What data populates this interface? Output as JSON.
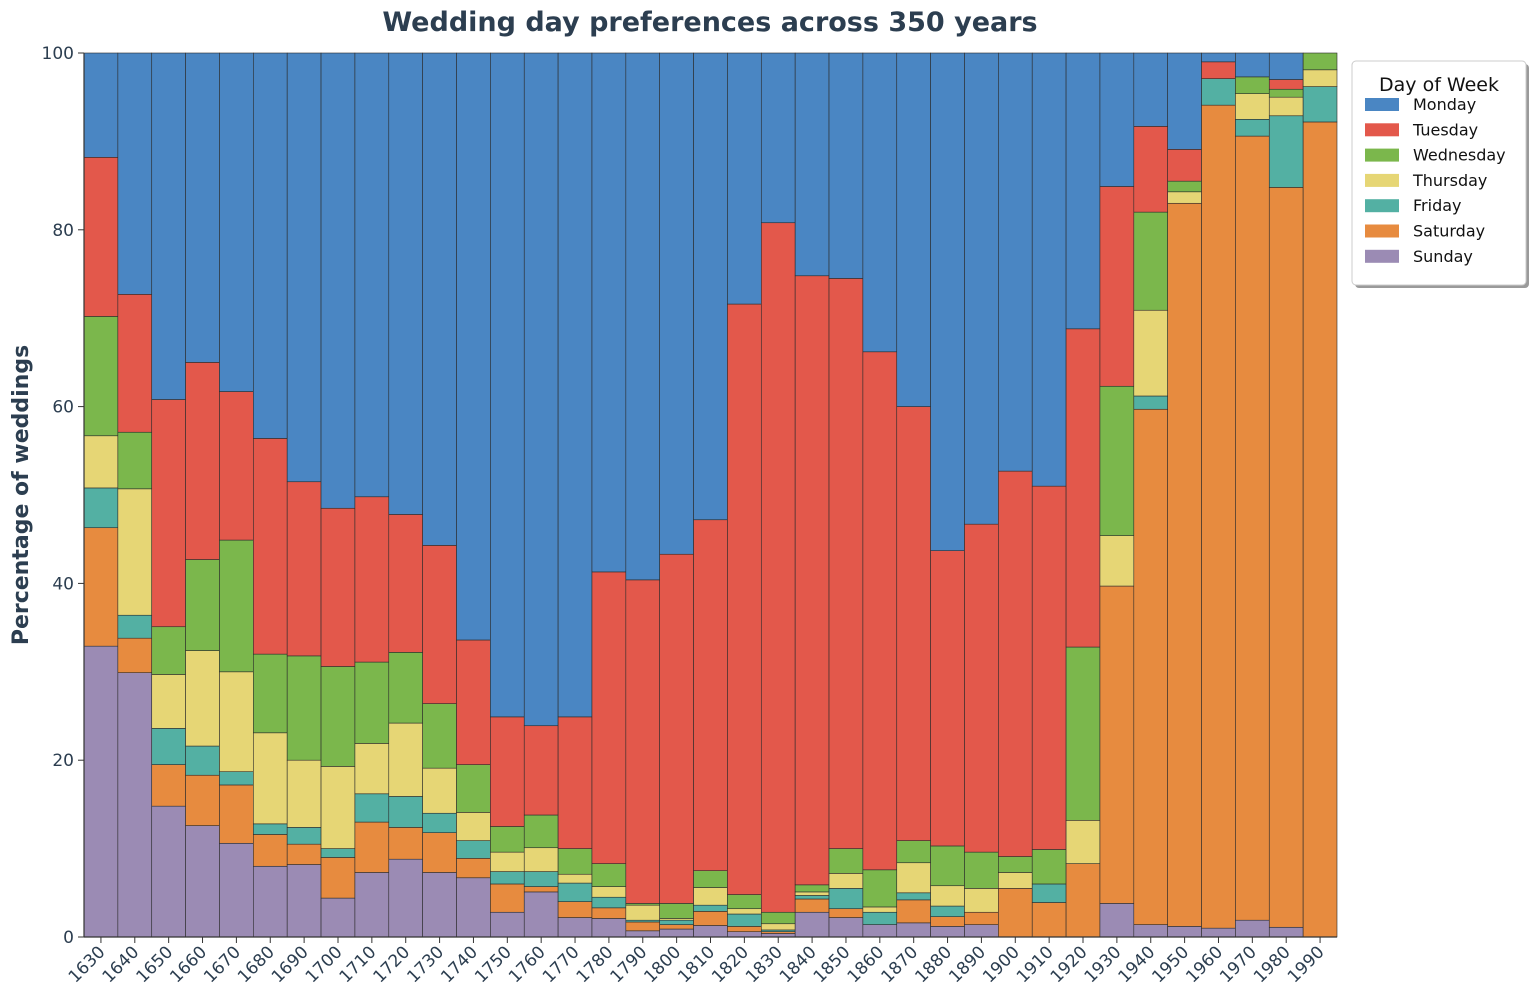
{
  "chart_data": {
    "type": "bar",
    "stacked": true,
    "normalized_percent": true,
    "title": "Wedding day preferences across 350 years",
    "xlabel": "",
    "ylabel": "Percentage of weddings",
    "ylim": [
      0,
      100
    ],
    "yticks": [
      0,
      20,
      40,
      60,
      80,
      100
    ],
    "grid": false,
    "legend": {
      "title": "Day of Week",
      "placement": "outside-top-right"
    },
    "categories": [
      "1630",
      "1640",
      "1650",
      "1660",
      "1670",
      "1680",
      "1690",
      "1700",
      "1710",
      "1720",
      "1730",
      "1740",
      "1750",
      "1760",
      "1770",
      "1780",
      "1790",
      "1800",
      "1810",
      "1820",
      "1830",
      "1840",
      "1850",
      "1860",
      "1870",
      "1880",
      "1890",
      "1900",
      "1910",
      "1920",
      "1930",
      "1940",
      "1950",
      "1960",
      "1970",
      "1980",
      "1990"
    ],
    "series": [
      {
        "name": "Sunday",
        "color": "#9b8bb4",
        "values": [
          32.9,
          29.9,
          14.8,
          12.6,
          10.6,
          8.0,
          8.2,
          4.4,
          7.3,
          8.8,
          7.3,
          6.7,
          2.8,
          5.1,
          2.2,
          2.1,
          0.7,
          0.9,
          1.3,
          0.6,
          0.4,
          2.8,
          2.2,
          1.4,
          1.6,
          1.2,
          1.4,
          0,
          0,
          0,
          3.8,
          1.4,
          1.2,
          1.0,
          1.9,
          1.1,
          0
        ]
      },
      {
        "name": "Saturday",
        "color": "#e78b3f",
        "values": [
          13.4,
          3.9,
          4.7,
          5.7,
          6.6,
          3.6,
          2.3,
          4.6,
          5.7,
          3.6,
          4.5,
          2.2,
          3.2,
          0.6,
          1.8,
          1.2,
          1.0,
          0.5,
          1.6,
          0.6,
          0.2,
          1.5,
          1.0,
          0,
          2.6,
          1.1,
          1.4,
          5.5,
          3.9,
          8.3,
          35.9,
          58.3,
          81.8,
          93.1,
          88.7,
          83.7,
          92.2
        ]
      },
      {
        "name": "Friday",
        "color": "#53b0a3",
        "values": [
          4.5,
          2.6,
          4.1,
          3.3,
          1.5,
          1.2,
          1.9,
          1.0,
          3.2,
          3.5,
          2.2,
          2.0,
          1.4,
          1.7,
          2.1,
          1.2,
          0.2,
          0.5,
          0.7,
          1.4,
          0.2,
          0.4,
          2.3,
          1.4,
          0.8,
          1.2,
          0,
          0,
          2.1,
          0,
          0,
          1.5,
          0,
          3.0,
          1.9,
          8.1,
          4.0
        ]
      },
      {
        "name": "Thursday",
        "color": "#e6d675",
        "values": [
          5.9,
          14.3,
          6.1,
          10.8,
          11.3,
          10.3,
          7.6,
          9.3,
          5.7,
          8.3,
          5.1,
          3.2,
          2.2,
          2.7,
          1.0,
          1.2,
          1.7,
          0.2,
          2.0,
          0.6,
          0.7,
          0.4,
          1.7,
          0.6,
          3.4,
          2.3,
          2.7,
          1.8,
          0,
          4.9,
          5.7,
          9.7,
          1.3,
          0,
          2.9,
          2.1,
          1.9
        ]
      },
      {
        "name": "Wednesday",
        "color": "#7bb74c",
        "values": [
          13.5,
          6.4,
          5.4,
          10.3,
          14.9,
          8.9,
          11.8,
          11.3,
          9.2,
          8.0,
          7.3,
          5.4,
          2.9,
          3.7,
          2.9,
          2.6,
          0.2,
          1.7,
          1.9,
          1.6,
          1.3,
          0.8,
          2.8,
          4.2,
          2.5,
          4.5,
          4.1,
          1.8,
          3.9,
          19.6,
          16.9,
          11.1,
          1.2,
          0,
          1.9,
          0.9,
          1.9
        ]
      },
      {
        "name": "Tuesday",
        "color": "#e3584b",
        "values": [
          18.0,
          15.6,
          25.7,
          22.3,
          16.8,
          24.4,
          19.7,
          17.9,
          18.7,
          15.6,
          17.9,
          14.1,
          12.4,
          10.1,
          14.9,
          33.0,
          36.6,
          39.5,
          39.7,
          66.8,
          78.0,
          68.9,
          64.5,
          58.6,
          49.1,
          33.4,
          37.1,
          43.6,
          41.1,
          36.0,
          22.6,
          9.7,
          3.6,
          1.9,
          0,
          1.1,
          0
        ]
      },
      {
        "name": "Monday",
        "color": "#4a86c3",
        "values": [
          11.8,
          27.3,
          39.2,
          35.0,
          38.3,
          43.6,
          48.5,
          51.5,
          50.2,
          52.2,
          55.7,
          66.4,
          75.1,
          76.1,
          75.1,
          58.7,
          59.6,
          56.7,
          52.8,
          28.4,
          19.2,
          25.2,
          25.5,
          33.8,
          40.0,
          56.3,
          53.3,
          47.3,
          49.0,
          31.2,
          15.1,
          8.3,
          10.9,
          1.0,
          2.7,
          3.0,
          0
        ]
      }
    ]
  }
}
